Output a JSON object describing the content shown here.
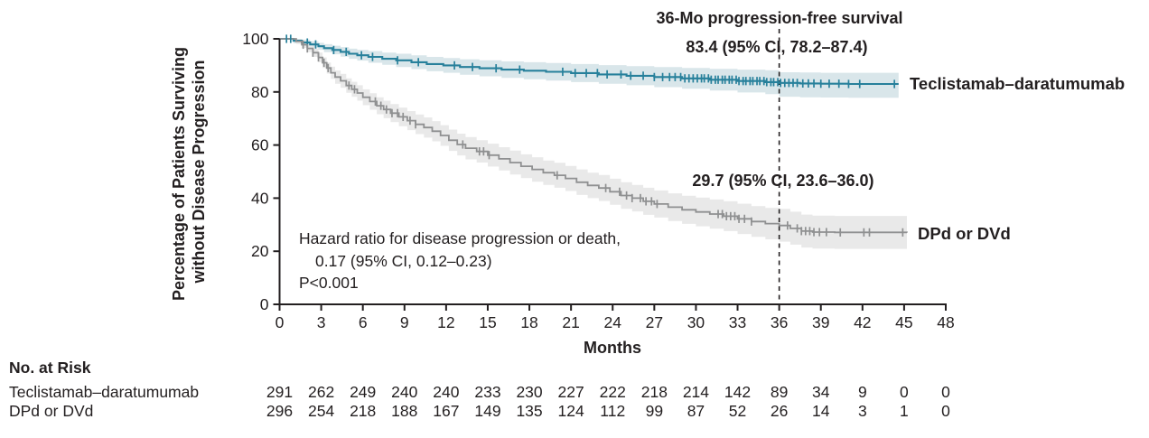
{
  "figure": {
    "title_36mo": "36-Mo progression-free survival",
    "hr_line1": "Hazard ratio for disease progression or death,",
    "hr_line2": "0.17 (95% CI, 0.12–0.23)",
    "hr_line3": "P<0.001",
    "y_axis_label_line1": "Percentage of Patients Surviving",
    "y_axis_label_line2": "without Disease Progression",
    "x_axis_label": "Months"
  },
  "colors": {
    "teal_line": "#27809b",
    "teal_text": "#17698c",
    "teal_band": "#d9e6ea",
    "gray_line": "#8f9091",
    "gray_text": "#919194",
    "gray_band": "#e9e9e9",
    "ink": "#231f20"
  },
  "risk_table": {
    "header": "No. at Risk",
    "rows": [
      {
        "label": "Teclistamab–daratumumab",
        "values": [
          291,
          262,
          249,
          240,
          240,
          233,
          230,
          227,
          222,
          218,
          214,
          142,
          89,
          34,
          9,
          0,
          0
        ]
      },
      {
        "label": "DPd or DVd",
        "values": [
          296,
          254,
          218,
          188,
          167,
          149,
          135,
          124,
          112,
          99,
          87,
          52,
          26,
          14,
          3,
          1,
          0
        ]
      }
    ]
  },
  "chart_data": {
    "type": "line",
    "subtype": "kaplan-meier",
    "title": "36-Mo progression-free survival",
    "xlabel": "Months",
    "ylabel": "Percentage of Patients Surviving without Disease Progression",
    "xlim": [
      0,
      48
    ],
    "ylim": [
      0,
      100
    ],
    "x_ticks": [
      0,
      3,
      6,
      9,
      12,
      15,
      18,
      21,
      24,
      27,
      30,
      33,
      36,
      39,
      42,
      45,
      48
    ],
    "y_ticks": [
      0,
      20,
      40,
      60,
      80,
      100
    ],
    "grid": false,
    "reference_line_x": 36,
    "annotations": {
      "teal_36mo": "83.4 (95% CI, 78.2–87.4)",
      "gray_36mo": "29.7 (95% CI, 23.6–36.0)",
      "hazard_ratio": [
        "Hazard ratio for disease progression or death,",
        "0.17 (95% CI, 0.12–0.23)",
        "P<0.001"
      ]
    },
    "series": [
      {
        "name": "Teclistamab–daratumumab",
        "value_at_36mo": 83.4,
        "ci_at_36mo": [
          78.2,
          87.4
        ],
        "points": [
          [
            0,
            100,
            100,
            100
          ],
          [
            1,
            99.3,
            98.3,
            100
          ],
          [
            1.6,
            98.6,
            97.5,
            99.7
          ],
          [
            2.2,
            97.9,
            96.7,
            99.1
          ],
          [
            2.8,
            97.2,
            95.9,
            98.5
          ],
          [
            3.2,
            96.5,
            95,
            98
          ],
          [
            3.8,
            95.8,
            94.2,
            97.4
          ],
          [
            4.4,
            95.1,
            93.3,
            96.9
          ],
          [
            5,
            94.4,
            92.5,
            96.3
          ],
          [
            5.6,
            93.8,
            91.8,
            95.8
          ],
          [
            6.4,
            93.2,
            91,
            95.4
          ],
          [
            7.4,
            92.5,
            90.2,
            94.8
          ],
          [
            8.4,
            91.9,
            89.4,
            94.4
          ],
          [
            9.5,
            91.2,
            88.6,
            93.8
          ],
          [
            10.6,
            90.5,
            87.8,
            93.2
          ],
          [
            11.8,
            90,
            87.2,
            92.8
          ],
          [
            13,
            89.4,
            86.5,
            92.3
          ],
          [
            14.4,
            88.9,
            85.9,
            91.9
          ],
          [
            16,
            88.4,
            85.3,
            91.5
          ],
          [
            17.6,
            88,
            84.8,
            91.2
          ],
          [
            19.2,
            87.6,
            84.3,
            90.9
          ],
          [
            21,
            87.1,
            83.7,
            90.5
          ],
          [
            23,
            86.6,
            83.1,
            90.1
          ],
          [
            25,
            86.1,
            82.5,
            89.7
          ],
          [
            27,
            85.6,
            81.8,
            89.4
          ],
          [
            29,
            85.1,
            81.2,
            89
          ],
          [
            31,
            84.6,
            80.5,
            88.7
          ],
          [
            33,
            84.1,
            79.8,
            88.4
          ],
          [
            35,
            83.7,
            79.2,
            88.2
          ],
          [
            36,
            83.4,
            78.2,
            87.4
          ],
          [
            37.5,
            83.2,
            78,
            87.3
          ],
          [
            39,
            83.1,
            77.9,
            87.2
          ],
          [
            41,
            83,
            77.8,
            87.2
          ],
          [
            44.6,
            83,
            77.8,
            87.2
          ]
        ],
        "censor_x": [
          0.5,
          0.8,
          2.0,
          2.6,
          3.9,
          4.8,
          5.9,
          6.7,
          8.5,
          10.0,
          12.6,
          13.9,
          15.6,
          17.3,
          20.4,
          21.3,
          22.1,
          22.9,
          23.6,
          24.6,
          25.3,
          26.2,
          27.0,
          27.6,
          28.1,
          28.5,
          28.9,
          29.2,
          29.5,
          29.8,
          30.1,
          30.4,
          30.6,
          30.9,
          31.1,
          31.4,
          31.6,
          31.9,
          32.1,
          32.4,
          32.6,
          32.9,
          33.1,
          33.4,
          33.6,
          33.9,
          34.1,
          34.4,
          34.6,
          34.9,
          35.1,
          35.4,
          35.6,
          35.9,
          36.1,
          36.4,
          36.7,
          37.0,
          37.3,
          37.7,
          38.1,
          38.5,
          39.0,
          39.6,
          40.3,
          41.0,
          41.8,
          44.3
        ]
      },
      {
        "name": "DPd or DVd",
        "value_at_36mo": 29.7,
        "ci_at_36mo": [
          23.6,
          36.0
        ],
        "points": [
          [
            0,
            100,
            100,
            100
          ],
          [
            1.2,
            99,
            98,
            100
          ],
          [
            1.6,
            97.8,
            96.6,
            99
          ],
          [
            2,
            96.4,
            95,
            97.8
          ],
          [
            2.4,
            94.8,
            93.2,
            96.4
          ],
          [
            2.8,
            93,
            91.2,
            94.8
          ],
          [
            3.1,
            91,
            89,
            93
          ],
          [
            3.4,
            89,
            86.9,
            91.1
          ],
          [
            3.7,
            87.2,
            84.9,
            89.5
          ],
          [
            4,
            85.6,
            83.1,
            88.1
          ],
          [
            4.4,
            84.2,
            81.6,
            86.8
          ],
          [
            4.8,
            82.4,
            79.7,
            85.1
          ],
          [
            5.2,
            81,
            78.2,
            83.8
          ],
          [
            5.6,
            79.6,
            76.7,
            82.5
          ],
          [
            6,
            78,
            75,
            81
          ],
          [
            6.5,
            76.4,
            73.3,
            79.5
          ],
          [
            7,
            74.8,
            71.6,
            78
          ],
          [
            7.5,
            73.4,
            70.1,
            76.7
          ],
          [
            8,
            72,
            68.6,
            75.4
          ],
          [
            8.6,
            70.6,
            67.1,
            74.1
          ],
          [
            9.2,
            69.2,
            65.6,
            72.8
          ],
          [
            9.8,
            67.8,
            64.1,
            71.5
          ],
          [
            10.4,
            66.6,
            62.8,
            70.4
          ],
          [
            11,
            65.2,
            61.4,
            69
          ],
          [
            11.6,
            63.6,
            59.7,
            67.5
          ],
          [
            12.2,
            61.8,
            57.8,
            65.8
          ],
          [
            12.8,
            60.2,
            56.1,
            64.3
          ],
          [
            13.4,
            58.8,
            54.6,
            63
          ],
          [
            14.2,
            57.6,
            53.4,
            61.8
          ],
          [
            15,
            56.2,
            51.9,
            60.5
          ],
          [
            15.8,
            54.8,
            50.4,
            59.2
          ],
          [
            16.6,
            53.4,
            48.9,
            57.9
          ],
          [
            17.4,
            52,
            47.5,
            56.5
          ],
          [
            18.2,
            50.8,
            46.2,
            55.4
          ],
          [
            19,
            49.6,
            45,
            54.2
          ],
          [
            19.8,
            48.6,
            43.9,
            53.3
          ],
          [
            20.6,
            47.4,
            42.7,
            52.1
          ],
          [
            21.4,
            46,
            41.2,
            50.8
          ],
          [
            22.2,
            44.8,
            40,
            49.6
          ],
          [
            23,
            43.8,
            38.9,
            48.7
          ],
          [
            23.8,
            42.4,
            37.5,
            47.3
          ],
          [
            24.6,
            41,
            36,
            46
          ],
          [
            25.4,
            40,
            35,
            45
          ],
          [
            26.2,
            38.8,
            33.7,
            43.9
          ],
          [
            27,
            37.8,
            32.7,
            42.9
          ],
          [
            28,
            36.6,
            31.4,
            41.8
          ],
          [
            29,
            35.6,
            30.3,
            40.9
          ],
          [
            30,
            34.8,
            29.4,
            40.2
          ],
          [
            31,
            34,
            28.5,
            39.5
          ],
          [
            32,
            33.2,
            27.6,
            38.8
          ],
          [
            33,
            32.2,
            26.5,
            37.9
          ],
          [
            34,
            31.2,
            25.4,
            37
          ],
          [
            35,
            30.4,
            24.5,
            36.3
          ],
          [
            36,
            29.7,
            23.6,
            36
          ],
          [
            36.8,
            28.6,
            22.5,
            34.9
          ],
          [
            37.6,
            27.6,
            21.4,
            33.8
          ],
          [
            38.4,
            27.2,
            21,
            33.4
          ],
          [
            40,
            27.1,
            20.9,
            33.3
          ],
          [
            45.2,
            27,
            20.8,
            33.2
          ]
        ],
        "censor_x": [
          1.7,
          2.0,
          2.4,
          2.8,
          3.2,
          3.5,
          5.0,
          5.4,
          6.9,
          7.3,
          7.7,
          8.1,
          8.5,
          8.9,
          9.4,
          9.8,
          13.2,
          14.4,
          14.7,
          15.1,
          20.0,
          23.5,
          24.5,
          25.0,
          25.4,
          26.0,
          26.4,
          26.8,
          27.2,
          31.6,
          31.9,
          32.2,
          32.5,
          32.8,
          33.1,
          33.5,
          34.0,
          36.6,
          37.3,
          37.6,
          37.9,
          38.2,
          38.5,
          38.9,
          39.4,
          40.4,
          42.1,
          42.5,
          44.9
        ]
      }
    ],
    "no_at_risk": {
      "header": "No. at Risk",
      "timepoints": [
        0,
        3,
        6,
        9,
        12,
        15,
        18,
        21,
        24,
        27,
        30,
        33,
        36,
        39,
        42,
        45,
        48
      ],
      "Teclistamab–daratumumab": [
        291,
        262,
        249,
        240,
        240,
        233,
        230,
        227,
        222,
        218,
        214,
        142,
        89,
        34,
        9,
        0,
        0
      ],
      "DPd or DVd": [
        296,
        254,
        218,
        188,
        167,
        149,
        135,
        124,
        112,
        99,
        87,
        52,
        26,
        14,
        3,
        1,
        0
      ]
    }
  }
}
